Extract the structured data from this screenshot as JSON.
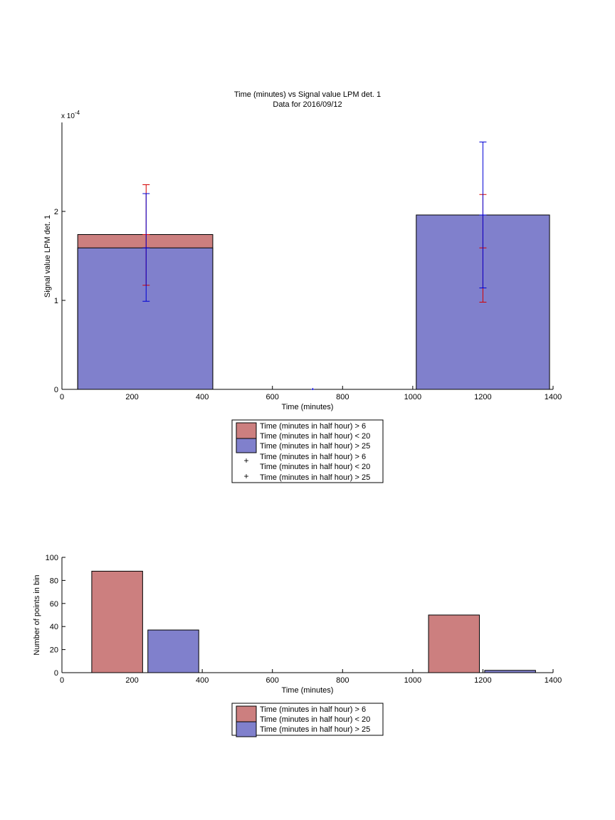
{
  "chart_data": [
    {
      "type": "bar",
      "title": "Time (minutes) vs Signal value LPM det. 1",
      "subtitle": "Data for 2016/09/12",
      "xlabel": "Time (minutes)",
      "ylabel": "Signal value LPM det. 1",
      "y_exponent_label": "x 10",
      "y_exponent_power": "-4",
      "xlim": [
        0,
        1400
      ],
      "ylim": [
        0,
        3
      ],
      "xticks": [
        "0",
        "200",
        "400",
        "600",
        "800",
        "1000",
        "1200",
        "1400"
      ],
      "yticks": [
        "0",
        "1",
        "2"
      ],
      "grid": false,
      "legend_placement": "below",
      "colors": {
        "red_series": "#cc7f7f",
        "blue_series": "#8080cc",
        "red_err": "#d40000",
        "blue_err": "#0000d4"
      },
      "series": [
        {
          "name": "Time (minutes in half hour) > 6",
          "name2": "Time (minutes in half hour) < 20",
          "bars": [
            {
              "x0": 45,
              "x1": 430,
              "value": 1.74
            }
          ]
        },
        {
          "name": "Time (minutes in half hour) > 25",
          "bars": [
            {
              "x0": 45,
              "x1": 430,
              "value": 1.59
            },
            {
              "x0": 1010,
              "x1": 1390,
              "value": 1.96
            }
          ]
        }
      ],
      "error_bars": [
        {
          "series": "red",
          "x": 240,
          "y": 1.74,
          "low": 1.17,
          "high": 2.3
        },
        {
          "series": "blue",
          "x": 240,
          "y": 1.59,
          "low": 0.99,
          "high": 2.2
        },
        {
          "series": "red",
          "x": 1200,
          "y": 1.59,
          "low": 0.98,
          "high": 2.19
        },
        {
          "series": "blue",
          "x": 1200,
          "y": 1.96,
          "low": 1.14,
          "high": 2.78
        },
        {
          "series": "blue",
          "x": 715,
          "y": 0.0,
          "low": 0.0,
          "high": 0.0
        }
      ],
      "legend": [
        "Time (minutes in half hour) > 6",
        "Time (minutes in half hour) < 20",
        "Time (minutes in half hour) > 25",
        "Time (minutes in half hour) > 6",
        "Time (minutes in half hour) < 20",
        "Time (minutes in half hour) > 25"
      ]
    },
    {
      "type": "bar",
      "xlabel": "Time (minutes)",
      "ylabel": "Number of points in bin",
      "xlim": [
        0,
        1400
      ],
      "ylim": [
        0,
        100
      ],
      "xticks": [
        "0",
        "200",
        "400",
        "600",
        "800",
        "1000",
        "1200",
        "1400"
      ],
      "yticks": [
        "0",
        "20",
        "40",
        "60",
        "80",
        "100"
      ],
      "grid": false,
      "legend_placement": "below",
      "series": [
        {
          "name": "Time (minutes in half hour) > 6",
          "name2": "Time (minutes in half hour) < 20",
          "bars": [
            {
              "x0": 85,
              "x1": 230,
              "value": 88
            },
            {
              "x0": 1045,
              "x1": 1190,
              "value": 50
            }
          ]
        },
        {
          "name": "Time (minutes in half hour) > 25",
          "bars": [
            {
              "x0": 245,
              "x1": 390,
              "value": 37
            },
            {
              "x0": 1205,
              "x1": 1350,
              "value": 2
            }
          ]
        }
      ],
      "legend": [
        "Time (minutes in half hour) > 6",
        "Time (minutes in half hour) < 20",
        "Time (minutes in half hour) > 25"
      ]
    }
  ]
}
